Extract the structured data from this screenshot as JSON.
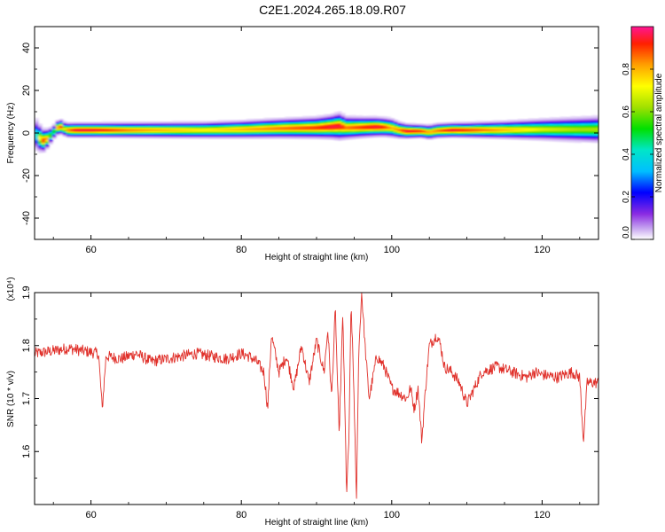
{
  "figure_title": "C2E1.2024.265.18.09.R07",
  "colors": {
    "snr_line": "#e0302a",
    "axis": "#000000",
    "colormap": [
      "#ffffff",
      "#c8a8f0",
      "#8a2be2",
      "#0000ff",
      "#00bfff",
      "#00e6c8",
      "#00e000",
      "#a0e000",
      "#ffff00",
      "#ffa000",
      "#ff2000",
      "#ff1493"
    ]
  },
  "chart_data": [
    {
      "type": "heatmap",
      "id": "spectrogram",
      "xlabel": "Height of straight line (km)",
      "ylabel": "Frequency (Hz)",
      "xlim": [
        52.5,
        127.5
      ],
      "ylim": [
        -50,
        50
      ],
      "xticks": [
        60,
        80,
        100,
        120
      ],
      "yticks": [
        -40,
        -20,
        0,
        20,
        40
      ],
      "xtick_labels": [
        "60",
        "80",
        "100",
        "120"
      ],
      "ytick_labels": [
        "-40",
        "-20",
        "0",
        "20",
        "40"
      ],
      "colorbar": {
        "label": "Normalized spectral amplitude",
        "range": [
          0,
          1
        ],
        "ticks": [
          0.0,
          0.2,
          0.4,
          0.6,
          0.8
        ],
        "tick_labels": [
          "0.0",
          "0.2",
          "0.4",
          "0.6",
          "0.8"
        ]
      },
      "ridge": {
        "x": [
          52.5,
          53.0,
          53.5,
          54.0,
          54.5,
          55.0,
          55.5,
          56.0,
          56.5,
          57.0,
          58,
          60,
          65,
          70,
          75,
          80,
          85,
          90,
          92,
          93,
          94,
          96,
          98,
          99,
          100,
          101,
          102,
          104,
          105,
          106,
          108,
          110,
          115,
          120,
          125,
          127.5
        ],
        "frequency_hz": [
          0,
          -1.5,
          -3.5,
          -3,
          -1.5,
          0.5,
          2.5,
          3,
          2,
          1.5,
          1.5,
          1.5,
          1.5,
          1.5,
          1.5,
          1.8,
          2.3,
          2.6,
          3.0,
          3.3,
          2.6,
          2.8,
          3.0,
          2.9,
          2.5,
          1.5,
          1.0,
          1.0,
          0.5,
          1.2,
          1.5,
          1.5,
          1.6,
          1.8,
          1.8,
          1.8
        ],
        "peak_amplitude": [
          0.3,
          0.6,
          0.9,
          0.9,
          0.6,
          0.5,
          0.8,
          0.9,
          0.7,
          0.85,
          0.95,
          0.95,
          0.85,
          0.8,
          0.75,
          0.8,
          0.85,
          0.9,
          0.95,
          0.95,
          0.85,
          0.9,
          0.95,
          0.9,
          0.8,
          0.85,
          0.95,
          0.9,
          0.8,
          0.85,
          0.95,
          0.9,
          0.8,
          0.7,
          0.65,
          0.65
        ],
        "half_width_hz": [
          6,
          5,
          4,
          3.5,
          3,
          2.5,
          2.5,
          2.5,
          2.5,
          2.5,
          2.5,
          2.5,
          2.6,
          2.7,
          2.8,
          3.0,
          3.3,
          3.6,
          4.0,
          4.5,
          3.8,
          3.5,
          3.3,
          3.2,
          3.2,
          2.8,
          2.5,
          2.3,
          2.5,
          2.5,
          2.5,
          2.6,
          3.0,
          3.6,
          4.2,
          4.5
        ]
      }
    },
    {
      "type": "line",
      "id": "snr",
      "xlabel": "Height of straight line (km)",
      "ylabel": "SNR (10 * v/v)",
      "y_multiplier_label": "(x10⁴)",
      "xlim": [
        52.5,
        127.5
      ],
      "ylim": [
        1.5,
        1.9
      ],
      "xticks": [
        60,
        80,
        100,
        120
      ],
      "yticks": [
        1.6,
        1.7,
        1.8,
        1.9
      ],
      "xtick_labels": [
        "60",
        "80",
        "100",
        "120"
      ],
      "ytick_labels": [
        "1.6",
        "1.7",
        "1.8",
        "1.9"
      ],
      "series": [
        {
          "x": [
            52.5,
            55,
            57,
            59,
            61,
            61.5,
            62,
            64,
            66,
            68,
            70,
            72,
            74,
            76,
            78,
            80,
            81,
            82,
            83,
            83.5,
            84,
            85,
            86,
            87,
            88,
            89,
            90,
            91,
            91.5,
            92,
            92.5,
            93,
            93.5,
            94,
            94.3,
            94.6,
            95,
            95.3,
            95.6,
            96,
            96.5,
            97,
            98,
            99,
            100,
            101,
            102,
            102.5,
            103,
            103.5,
            104,
            104.5,
            105,
            106,
            106.5,
            107,
            108,
            109,
            110,
            112,
            114,
            116,
            118,
            119,
            120,
            122,
            124,
            125,
            125.5,
            126,
            127.5
          ],
          "y": [
            1.785,
            1.79,
            1.795,
            1.79,
            1.785,
            1.68,
            1.78,
            1.775,
            1.785,
            1.77,
            1.775,
            1.78,
            1.785,
            1.78,
            1.775,
            1.785,
            1.78,
            1.77,
            1.75,
            1.68,
            1.82,
            1.75,
            1.78,
            1.72,
            1.8,
            1.73,
            1.81,
            1.75,
            1.83,
            1.7,
            1.87,
            1.63,
            1.86,
            1.52,
            1.62,
            1.88,
            1.7,
            1.5,
            1.78,
            1.9,
            1.79,
            1.7,
            1.78,
            1.76,
            1.72,
            1.71,
            1.7,
            1.72,
            1.68,
            1.72,
            1.62,
            1.72,
            1.8,
            1.82,
            1.8,
            1.76,
            1.75,
            1.73,
            1.69,
            1.75,
            1.76,
            1.75,
            1.74,
            1.75,
            1.745,
            1.74,
            1.75,
            1.74,
            1.62,
            1.73,
            1.73
          ]
        }
      ]
    }
  ]
}
